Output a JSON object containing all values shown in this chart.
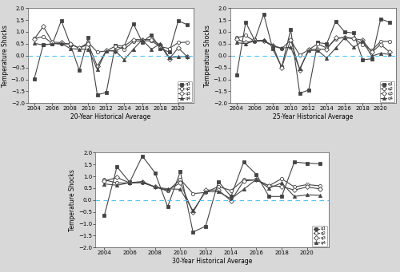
{
  "years": [
    2004,
    2005,
    2006,
    2007,
    2008,
    2009,
    2010,
    2011,
    2012,
    2013,
    2014,
    2015,
    2016,
    2017,
    2018,
    2019,
    2020,
    2021
  ],
  "panel1_title": "20-Year Historical Average",
  "panel2_title": "25-Year Historical Average",
  "panel3_title": "30-Year Historical Average",
  "ylabel": "Temperature Shocks",
  "ylim": [
    -2,
    2
  ],
  "yticks": [
    -2.0,
    -1.5,
    -1.0,
    -0.5,
    0.0,
    0.5,
    1.0,
    1.5,
    2.0
  ],
  "xticks": [
    2004,
    2006,
    2008,
    2010,
    2012,
    2014,
    2016,
    2018,
    2020
  ],
  "legend_labels": [
    "q1",
    "q2",
    "q3",
    "q4"
  ],
  "hline_color": "#4fc3f7",
  "line_color": "#444444",
  "fig_facecolor": "#d8d8d8",
  "ax_facecolor": "#ffffff",
  "series": {
    "20yr": {
      "q1": [
        -0.97,
        0.47,
        0.49,
        1.47,
        0.47,
        -0.62,
        0.77,
        -1.65,
        -1.55,
        0.43,
        0.4,
        1.35,
        0.57,
        0.87,
        0.3,
        0.15,
        1.47,
        1.3
      ],
      "q2": [
        0.72,
        0.8,
        0.52,
        0.48,
        0.5,
        0.32,
        0.55,
        0.15,
        0.2,
        0.4,
        0.27,
        0.6,
        0.63,
        0.62,
        0.38,
        0.3,
        0.55,
        0.57
      ],
      "q3": [
        0.7,
        1.23,
        0.57,
        0.55,
        0.48,
        0.32,
        0.48,
        -0.45,
        0.22,
        0.2,
        0.4,
        0.68,
        0.67,
        0.68,
        0.45,
        -0.13,
        0.33,
        -0.05
      ],
      "q4": [
        0.52,
        0.45,
        0.5,
        0.52,
        0.3,
        0.27,
        0.27,
        -0.58,
        0.2,
        0.2,
        -0.17,
        0.27,
        0.67,
        0.27,
        0.5,
        -0.08,
        -0.05,
        -0.03
      ]
    },
    "25yr": {
      "q1": [
        -0.8,
        1.4,
        0.65,
        1.75,
        0.28,
        -0.48,
        1.1,
        -1.58,
        -1.45,
        0.55,
        0.5,
        1.45,
        1.0,
        0.95,
        -0.18,
        -0.13,
        1.55,
        1.4
      ],
      "q2": [
        0.75,
        0.85,
        0.6,
        0.62,
        0.4,
        0.3,
        0.65,
        0.02,
        0.25,
        0.5,
        0.32,
        0.7,
        0.78,
        0.73,
        0.47,
        0.22,
        0.6,
        0.6
      ],
      "q3": [
        0.7,
        0.55,
        0.65,
        0.62,
        0.42,
        -0.5,
        0.68,
        -0.6,
        0.27,
        0.27,
        0.27,
        0.75,
        0.75,
        0.72,
        0.65,
        0.15,
        0.47,
        0.15
      ],
      "q4": [
        0.55,
        0.5,
        0.62,
        0.65,
        0.42,
        0.32,
        0.35,
        -0.55,
        0.22,
        0.22,
        -0.1,
        0.32,
        0.75,
        0.35,
        0.62,
        -0.02,
        0.1,
        0.05
      ]
    },
    "30yr": {
      "q1": [
        -0.65,
        1.4,
        0.75,
        1.85,
        1.15,
        -0.28,
        1.2,
        -1.35,
        -1.1,
        0.78,
        0.15,
        1.6,
        1.08,
        0.15,
        0.15,
        1.6,
        1.55,
        1.53
      ],
      "q2": [
        0.85,
        0.72,
        0.72,
        0.73,
        0.55,
        0.38,
        0.87,
        0.27,
        0.32,
        0.57,
        0.4,
        0.85,
        0.85,
        0.6,
        0.9,
        0.55,
        0.65,
        0.6
      ],
      "q3": [
        0.8,
        0.95,
        0.72,
        0.75,
        0.55,
        0.42,
        0.72,
        -0.52,
        0.42,
        0.42,
        -0.03,
        0.8,
        0.85,
        0.6,
        0.57,
        0.42,
        0.55,
        0.47
      ],
      "q4": [
        0.68,
        0.62,
        0.73,
        0.78,
        0.55,
        0.47,
        0.45,
        -0.45,
        0.35,
        0.35,
        0.05,
        0.45,
        0.87,
        0.5,
        0.72,
        0.15,
        0.22,
        0.2
      ]
    }
  },
  "markers": [
    "s",
    "o",
    "D",
    "^"
  ],
  "markerfacecolors": [
    "#444444",
    "#ffffff",
    "#ffffff",
    "#444444"
  ],
  "markeredgecolor": "#444444",
  "markersize": 3.0,
  "linewidth": 0.8,
  "tick_fontsize": 5,
  "label_fontsize": 5.5,
  "legend_fontsize": 4.0
}
